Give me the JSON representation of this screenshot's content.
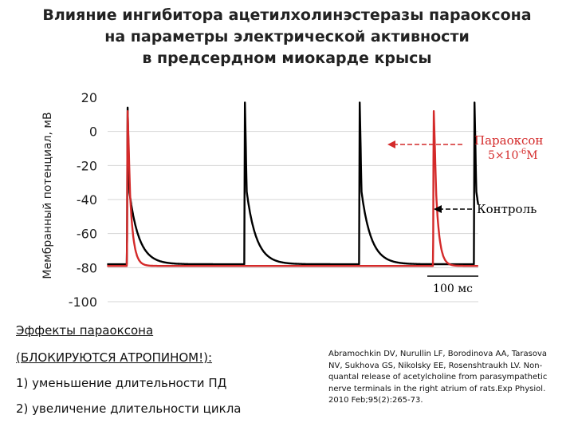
{
  "title_lines": [
    "Влияние ингибитора ацетилхолинэстеразы параоксона",
    "на параметры электрической активности",
    "в предсердном миокарде крысы"
  ],
  "chart_data": {
    "type": "line",
    "ylabel": "Мембранный потенциал, мВ",
    "xlabel": "",
    "ylim": [
      -100,
      20
    ],
    "y_ticks": [
      "20",
      "0",
      "-20",
      "-40",
      "-60",
      "-80",
      "-100"
    ],
    "y_tick_values": [
      20,
      0,
      -20,
      -40,
      -60,
      -80,
      -100
    ],
    "grid": true,
    "units": {
      "x": "мс",
      "y": "мВ"
    },
    "scale_bar": {
      "label": "100 мс",
      "duration_ms": 100
    },
    "series": [
      {
        "name": "Контроль",
        "color": "#000000",
        "resting_potential": -78,
        "peak_potential": 17,
        "spike_times_ms": [
          0,
          230,
          455,
          680
        ],
        "repolarization": "slow"
      },
      {
        "name": "Параоксон 5×10-6М",
        "color": "#d42a2a",
        "resting_potential": -79,
        "peak_potential": 14,
        "spike_times_ms": [
          0,
          600
        ],
        "repolarization": "fast"
      }
    ],
    "annotations": [
      {
        "text": "Параоксон",
        "line2": "5×10",
        "sup": "-6",
        "unit": "М",
        "target": "Параоксон 5×10-6М"
      },
      {
        "text": "Контроль",
        "target": "Контроль"
      }
    ]
  },
  "effects": {
    "heading": "Эффекты параоксона",
    "note": "(БЛОКИРУЮТСЯ АТРОПИНОМ!):",
    "items": [
      "1) уменьшение длительности ПД",
      "2) увеличение длительности цикла"
    ]
  },
  "reference": "Abramochkin DV, Nurullin LF, Borodinova AA, Tarasova NV, Sukhova GS, Nikolsky EE, Rosenshtraukh LV. Non-quantal release of acetylcholine from parasympathetic nerve terminals in the right atrium of rats.Exp Physiol. 2010 Feb;95(2):265-73."
}
